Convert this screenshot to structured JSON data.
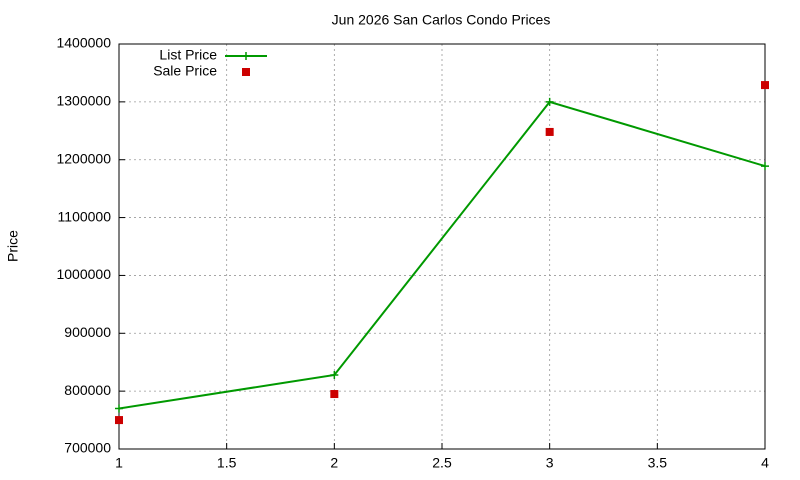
{
  "chart_data": {
    "type": "line",
    "title": "Jun 2026 San Carlos Condo Prices",
    "y_label": "Price",
    "x": [
      1,
      2,
      3,
      4
    ],
    "series": [
      {
        "name": "List Price",
        "color": "#009900",
        "style": "linespoints",
        "values": [
          770000,
          828000,
          1300000,
          1189000
        ]
      },
      {
        "name": "Sale Price",
        "color": "#cc0000",
        "style": "points",
        "values": [
          750000,
          795000,
          1248000,
          1329000
        ]
      }
    ],
    "xlim": [
      1,
      4
    ],
    "xticks": [
      1,
      1.5,
      2,
      2.5,
      3,
      3.5,
      4
    ],
    "ylim": [
      700000,
      1400000
    ],
    "yticks": [
      700000,
      800000,
      900000,
      1000000,
      1100000,
      1200000,
      1300000,
      1400000
    ],
    "grid": true,
    "legend": "top-left"
  }
}
